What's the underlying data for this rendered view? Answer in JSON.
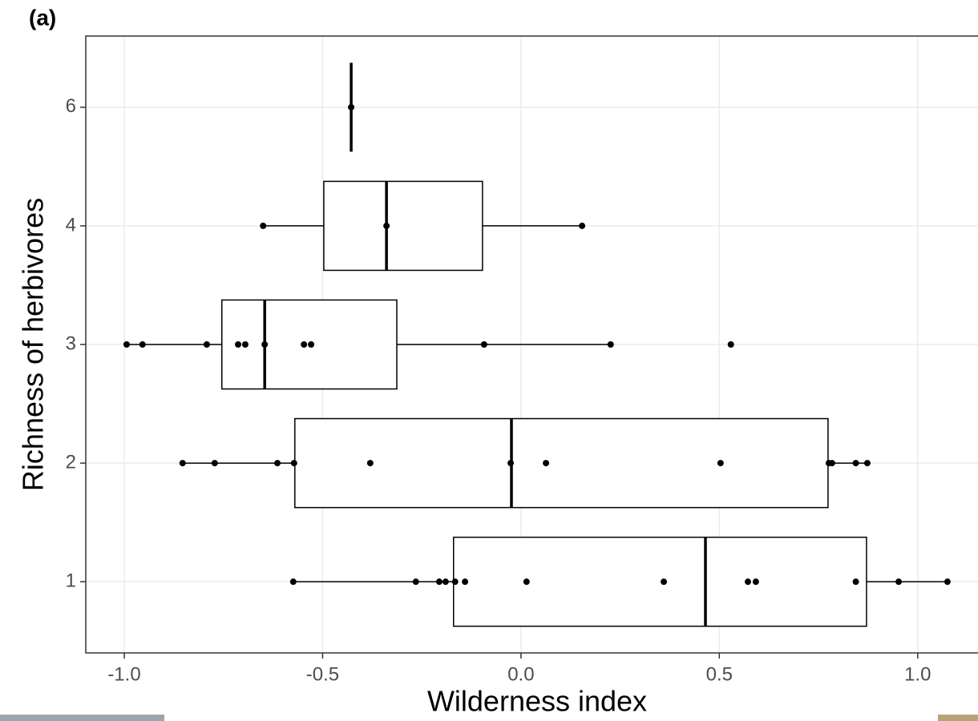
{
  "chart_data": {
    "type": "boxplot",
    "orientation": "horizontal",
    "panel_label": "(a)",
    "x_label": "Wilderness index",
    "y_label": "Richness of herbivores",
    "categories": [
      "1",
      "2",
      "3",
      "4",
      "6"
    ],
    "boxes": [
      {
        "q1": -0.17,
        "median": 0.465,
        "q3": 0.871,
        "whisker_low": -0.574,
        "whisker_high": 1.075,
        "points": [
          -0.574,
          -0.265,
          -0.206,
          -0.19,
          -0.166,
          -0.141,
          0.014,
          0.36,
          0.572,
          0.592,
          0.844,
          0.952,
          1.075
        ]
      },
      {
        "q1": -0.57,
        "median": -0.024,
        "q3": 0.774,
        "whisker_low": -0.853,
        "whisker_high": 0.873,
        "points": [
          -0.853,
          -0.772,
          -0.614,
          -0.572,
          -0.38,
          -0.026,
          0.063,
          0.503,
          0.776,
          0.784,
          0.844,
          0.873
        ]
      },
      {
        "q1": -0.754,
        "median": -0.646,
        "q3": -0.313,
        "whisker_low": -0.996,
        "whisker_high": 0.226,
        "points": [
          -0.994,
          -0.954,
          -0.792,
          -0.713,
          -0.695,
          -0.646,
          -0.547,
          -0.529,
          -0.093,
          0.226,
          0.529
        ]
      },
      {
        "q1": -0.497,
        "median": -0.339,
        "q3": -0.097,
        "whisker_low": -0.65,
        "whisker_high": 0.154,
        "points": [
          -0.65,
          -0.339,
          0.154
        ]
      },
      {
        "q1": -0.428,
        "median": -0.428,
        "q3": -0.428,
        "whisker_low": -0.428,
        "whisker_high": -0.428,
        "points": [
          -0.428
        ]
      }
    ],
    "xlim": [
      -1.097,
      1.152
    ],
    "xticks": [
      {
        "value": -1,
        "label": "-1.0"
      },
      {
        "value": -0.5,
        "label": "-0.5"
      },
      {
        "value": 0,
        "label": "0.0"
      },
      0.5,
      {
        "value": 1,
        "label": "1.0"
      }
    ],
    "grid": true,
    "box_color": "#000000",
    "box_fill": "#ffffff",
    "point_color": "#000000"
  }
}
